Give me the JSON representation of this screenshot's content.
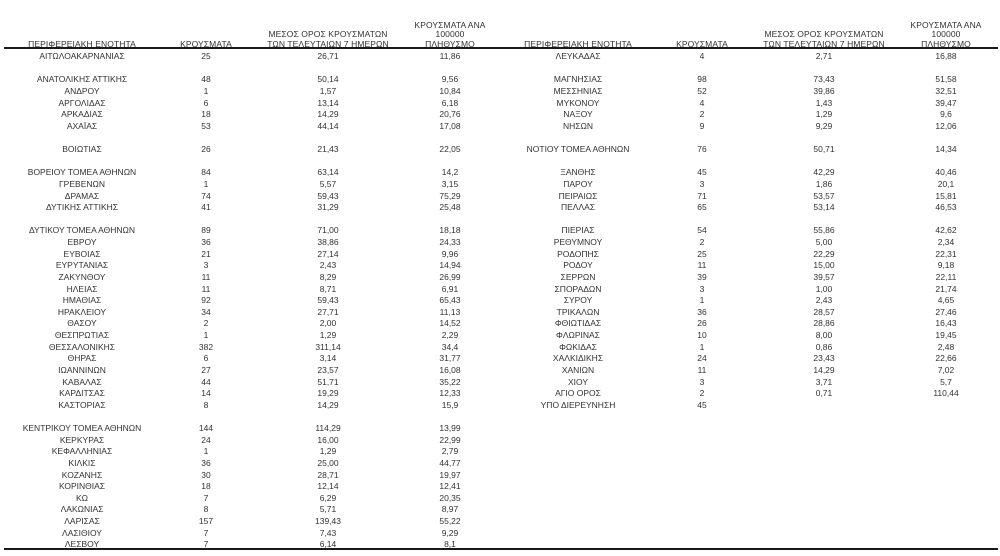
{
  "columns": [
    {
      "id": "region",
      "lines": [
        "ΠΕΡΙΦΕΡΕΙΑΚΗ ΕΝΟΤΗΤΑ",
        ""
      ]
    },
    {
      "id": "cases",
      "lines": [
        "ΚΡΟΥΣΜΑΤΑ",
        ""
      ]
    },
    {
      "id": "avg7",
      "lines": [
        "ΜΕΣΟΣ ΟΡΟΣ ΚΡΟΥΣΜΑΤΩΝ",
        "ΤΩΝ ΤΕΛΕΥΤΑΙΩΝ 7 ΗΜΕΡΩΝ"
      ]
    },
    {
      "id": "per100k",
      "lines": [
        "ΚΡΟΥΣΜΑΤΑ ΑΝΑ 100000",
        "ΠΛΗΘΥΣΜΟ"
      ]
    }
  ],
  "styles": {
    "text_color": "#333333",
    "rule_color": "#1a1a1a",
    "background": "#ffffff"
  },
  "tables": {
    "left": {
      "rows": [
        [
          "ΑΙΤΩΛΟΑΚΑΡΝΑΝΙΑΣ",
          "25",
          "26,71",
          "11,86"
        ],
        null,
        [
          "ΑΝΑΤΟΛΙΚΗΣ ΑΤΤΙΚΗΣ",
          "48",
          "50,14",
          "9,56"
        ],
        [
          "ΑΝΔΡΟΥ",
          "1",
          "1,57",
          "10,84"
        ],
        [
          "ΑΡΓΟΛΙΔΑΣ",
          "6",
          "13,14",
          "6,18"
        ],
        [
          "ΑΡΚΑΔΙΑΣ",
          "18",
          "14,29",
          "20,76"
        ],
        [
          "ΑΧΑΪΑΣ",
          "53",
          "44,14",
          "17,08"
        ],
        null,
        [
          "ΒΟΙΩΤΙΑΣ",
          "26",
          "21,43",
          "22,05"
        ],
        null,
        [
          "ΒΟΡΕΙΟΥ ΤΟΜΕΑ ΑΘΗΝΩΝ",
          "84",
          "63,14",
          "14,2"
        ],
        [
          "ΓΡΕΒΕΝΩΝ",
          "1",
          "5,57",
          "3,15"
        ],
        [
          "ΔΡΑΜΑΣ",
          "74",
          "59,43",
          "75,29"
        ],
        [
          "ΔΥΤΙΚΗΣ ΑΤΤΙΚΗΣ",
          "41",
          "31,29",
          "25,48"
        ],
        null,
        [
          "ΔΥΤΙΚΟΥ ΤΟΜΕΑ ΑΘΗΝΩΝ",
          "89",
          "71,00",
          "18,18"
        ],
        [
          "ΕΒΡΟΥ",
          "36",
          "38,86",
          "24,33"
        ],
        [
          "ΕΥΒΟΙΑΣ",
          "21",
          "27,14",
          "9,96"
        ],
        [
          "ΕΥΡΥΤΑΝΙΑΣ",
          "3",
          "2,43",
          "14,94"
        ],
        [
          "ΖΑΚΥΝΘΟΥ",
          "11",
          "8,29",
          "26,99"
        ],
        [
          "ΗΛΕΙΑΣ",
          "11",
          "8,71",
          "6,91"
        ],
        [
          "ΗΜΑΘΙΑΣ",
          "92",
          "59,43",
          "65,43"
        ],
        [
          "ΗΡΑΚΛΕΙΟΥ",
          "34",
          "27,71",
          "11,13"
        ],
        [
          "ΘΑΣΟΥ",
          "2",
          "2,00",
          "14,52"
        ],
        [
          "ΘΕΣΠΡΩΤΙΑΣ",
          "1",
          "1,29",
          "2,29"
        ],
        [
          "ΘΕΣΣΑΛΟΝΙΚΗΣ",
          "382",
          "311,14",
          "34,4"
        ],
        [
          "ΘΗΡΑΣ",
          "6",
          "3,14",
          "31,77"
        ],
        [
          "ΙΩΑΝΝΙΝΩΝ",
          "27",
          "23,57",
          "16,08"
        ],
        [
          "ΚΑΒΑΛΑΣ",
          "44",
          "51,71",
          "35,22"
        ],
        [
          "ΚΑΡΔΙΤΣΑΣ",
          "14",
          "19,29",
          "12,33"
        ],
        [
          "ΚΑΣΤΟΡΙΑΣ",
          "8",
          "14,29",
          "15,9"
        ],
        null,
        [
          "ΚΕΝΤΡΙΚΟΥ ΤΟΜΕΑ ΑΘΗΝΩΝ",
          "144",
          "114,29",
          "13,99"
        ],
        [
          "ΚΕΡΚΥΡΑΣ",
          "24",
          "16,00",
          "22,99"
        ],
        [
          "ΚΕΦΑΛΛΗΝΙΑΣ",
          "1",
          "1,29",
          "2,79"
        ],
        [
          "ΚΙΛΚΙΣ",
          "36",
          "25,00",
          "44,77"
        ],
        [
          "ΚΟΖΑΝΗΣ",
          "30",
          "28,71",
          "19,97"
        ],
        [
          "ΚΟΡΙΝΘΙΑΣ",
          "18",
          "12,14",
          "12,41"
        ],
        [
          "ΚΩ",
          "7",
          "6,29",
          "20,35"
        ],
        [
          "ΛΑΚΩΝΙΑΣ",
          "8",
          "5,71",
          "8,97"
        ],
        [
          "ΛΑΡΙΣΑΣ",
          "157",
          "139,43",
          "55,22"
        ],
        [
          "ΛΑΣΙΘΙΟΥ",
          "7",
          "7,43",
          "9,29"
        ],
        [
          "ΛΕΣΒΟΥ",
          "7",
          "6,14",
          "8,1"
        ]
      ]
    },
    "right": {
      "rows": [
        [
          "ΛΕΥΚΑΔΑΣ",
          "4",
          "2,71",
          "16,88"
        ],
        null,
        [
          "ΜΑΓΝΗΣΙΑΣ",
          "98",
          "73,43",
          "51,58"
        ],
        [
          "ΜΕΣΣΗΝΙΑΣ",
          "52",
          "39,86",
          "32,51"
        ],
        [
          "ΜΥΚΟΝΟΥ",
          "4",
          "1,43",
          "39,47"
        ],
        [
          "ΝΑΞΟΥ",
          "2",
          "1,29",
          "9,6"
        ],
        [
          "ΝΗΣΩΝ",
          "9",
          "9,29",
          "12,06"
        ],
        null,
        [
          "ΝΟΤΙΟΥ ΤΟΜΕΑ ΑΘΗΝΩΝ",
          "76",
          "50,71",
          "14,34"
        ],
        null,
        [
          "ΞΑΝΘΗΣ",
          "45",
          "42,29",
          "40,46"
        ],
        [
          "ΠΑΡΟΥ",
          "3",
          "1,86",
          "20,1"
        ],
        [
          "ΠΕΙΡΑΙΩΣ",
          "71",
          "53,57",
          "15,81"
        ],
        [
          "ΠΕΛΛΑΣ",
          "65",
          "53,14",
          "46,53"
        ],
        null,
        [
          "ΠΙΕΡΙΑΣ",
          "54",
          "55,86",
          "42,62"
        ],
        [
          "ΡΕΘΥΜΝΟΥ",
          "2",
          "5,00",
          "2,34"
        ],
        [
          "ΡΟΔΟΠΗΣ",
          "25",
          "22,29",
          "22,31"
        ],
        [
          "ΡΟΔΟΥ",
          "11",
          "15,00",
          "9,18"
        ],
        [
          "ΣΕΡΡΩΝ",
          "39",
          "39,57",
          "22,11"
        ],
        [
          "ΣΠΟΡΑΔΩΝ",
          "3",
          "1,00",
          "21,74"
        ],
        [
          "ΣΥΡΟΥ",
          "1",
          "2,43",
          "4,65"
        ],
        [
          "ΤΡΙΚΑΛΩΝ",
          "36",
          "28,57",
          "27,46"
        ],
        [
          "ΦΘΙΩΤΙΔΑΣ",
          "26",
          "28,86",
          "16,43"
        ],
        [
          "ΦΛΩΡΙΝΑΣ",
          "10",
          "8,00",
          "19,45"
        ],
        [
          "ΦΩΚΙΔΑΣ",
          "1",
          "0,86",
          "2,48"
        ],
        [
          "ΧΑΛΚΙΔΙΚΗΣ",
          "24",
          "23,43",
          "22,66"
        ],
        [
          "ΧΑΝΙΩΝ",
          "11",
          "14,29",
          "7,02"
        ],
        [
          "ΧΙΟΥ",
          "3",
          "3,71",
          "5,7"
        ],
        [
          "ΑΓΙΟ ΟΡΟΣ",
          "2",
          "0,71",
          "110,44"
        ],
        [
          "ΥΠΟ ΔΙΕΡΕΥΝΗΣΗ",
          "45",
          "",
          ""
        ]
      ]
    }
  }
}
